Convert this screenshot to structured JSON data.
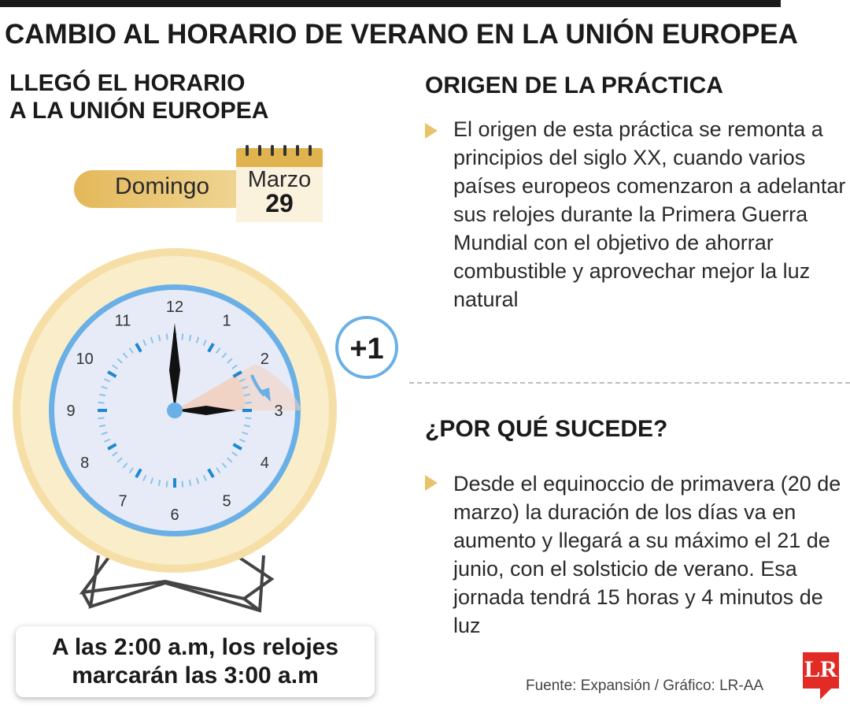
{
  "title": "CAMBIO AL HORARIO DE VERANO EN LA UNIÓN EUROPEA",
  "left": {
    "heading_line1": "LLEGÓ EL HORARIO",
    "heading_line2": "A LA UNIÓN EUROPEA",
    "day": "Domingo",
    "month": "Marzo",
    "date": "29",
    "clock_numbers": [
      "12",
      "1",
      "2",
      "3",
      "4",
      "5",
      "6",
      "7",
      "8",
      "9",
      "10",
      "11"
    ],
    "plus_badge": "+1",
    "note_line1": "A las 2:00 a.m, los relojes",
    "note_line2": "marcarán las 3:00 a.m"
  },
  "right": {
    "section1_heading": "ORIGEN DE LA PRÁCTICA",
    "section1_text": "El origen de esta práctica se remonta a principios del siglo XX, cuando varios países europeos comenzaron a adelantar sus relojes durante la Primera Guerra Mundial con el objetivo de ahorrar combustible y aprovechar mejor la luz natural",
    "section2_heading": "¿POR QUÉ SUCEDE?",
    "section2_text": "Desde el equinoccio de primavera (20 de marzo) la duración de los días va en aumento y llegará a su máximo el 21 de junio, con el solsticio de verano. Esa jornada tendrá 15 horas y 4 minutos de luz"
  },
  "footer": {
    "source": "Fuente: Expansión / Gráfico: LR-AA",
    "logo_text": "LR"
  },
  "colors": {
    "gold": "#e9c36b",
    "clock_blue": "#6ab0e6",
    "face": "#e6ebf7",
    "logo_red": "#e22b25"
  }
}
